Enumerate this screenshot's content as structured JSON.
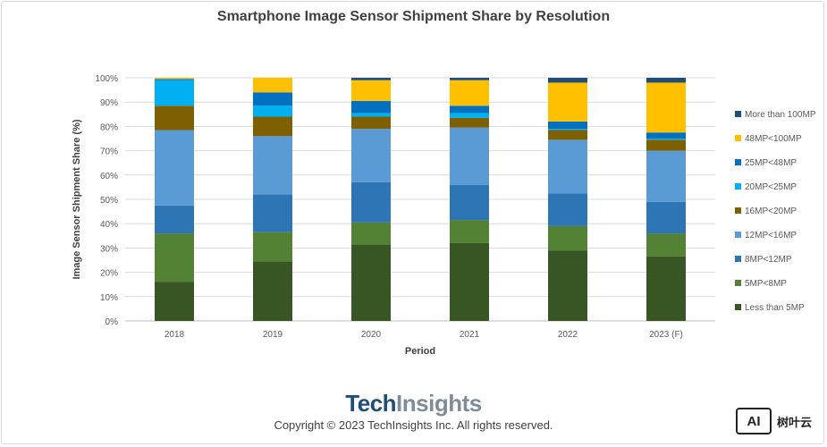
{
  "title": "Smartphone Image Sensor Shipment Share by Resolution",
  "footer": {
    "logo_part1": "Tech",
    "logo_part2": "Insights",
    "copyright": "Copyright © 2023 TechInsights Inc.  All rights reserved."
  },
  "watermark": {
    "box": "AI",
    "text": "树叶云"
  },
  "chart_data": {
    "type": "bar",
    "stacked": true,
    "title": "Smartphone Image Sensor Shipment Share by Resolution",
    "xlabel": "Period",
    "ylabel": "Image Sensor Shipment Share (%)",
    "ylim": [
      0,
      100
    ],
    "yticks": [
      "0%",
      "10%",
      "20%",
      "30%",
      "40%",
      "50%",
      "60%",
      "70%",
      "80%",
      "90%",
      "100%"
    ],
    "grid": true,
    "legend_position": "right",
    "categories": [
      "2018",
      "2019",
      "2020",
      "2021",
      "2022",
      "2023 (F)"
    ],
    "series": [
      {
        "name": "Less than 5MP",
        "color": "#375623",
        "values": [
          16,
          24.5,
          31.5,
          32,
          29,
          26.5
        ]
      },
      {
        "name": "5MP<8MP",
        "color": "#548235",
        "values": [
          20,
          12,
          9,
          9.5,
          10,
          9.5
        ]
      },
      {
        "name": "8MP<12MP",
        "color": "#2e75b6",
        "values": [
          11.5,
          15.5,
          16.5,
          14.5,
          13.5,
          13
        ]
      },
      {
        "name": "12MP<16MP",
        "color": "#5b9bd5",
        "values": [
          31,
          24,
          22,
          23.5,
          22,
          21
        ]
      },
      {
        "name": "16MP<20MP",
        "color": "#7f6000",
        "values": [
          10,
          8,
          5,
          4,
          4,
          4.5
        ]
      },
      {
        "name": "20MP<25MP",
        "color": "#00b0f0",
        "values": [
          10.5,
          4.5,
          1.5,
          2,
          0.5,
          0.5
        ]
      },
      {
        "name": "25MP<48MP",
        "color": "#0070c0",
        "values": [
          0.5,
          5.5,
          5,
          3,
          3,
          2.5
        ]
      },
      {
        "name": "48MP<100MP",
        "color": "#ffc000",
        "values": [
          0.5,
          6,
          8.5,
          10.5,
          16,
          20.5
        ]
      },
      {
        "name": "More than 100MP",
        "color": "#1f4e79",
        "values": [
          0,
          0,
          1,
          1,
          2,
          2
        ]
      }
    ]
  }
}
